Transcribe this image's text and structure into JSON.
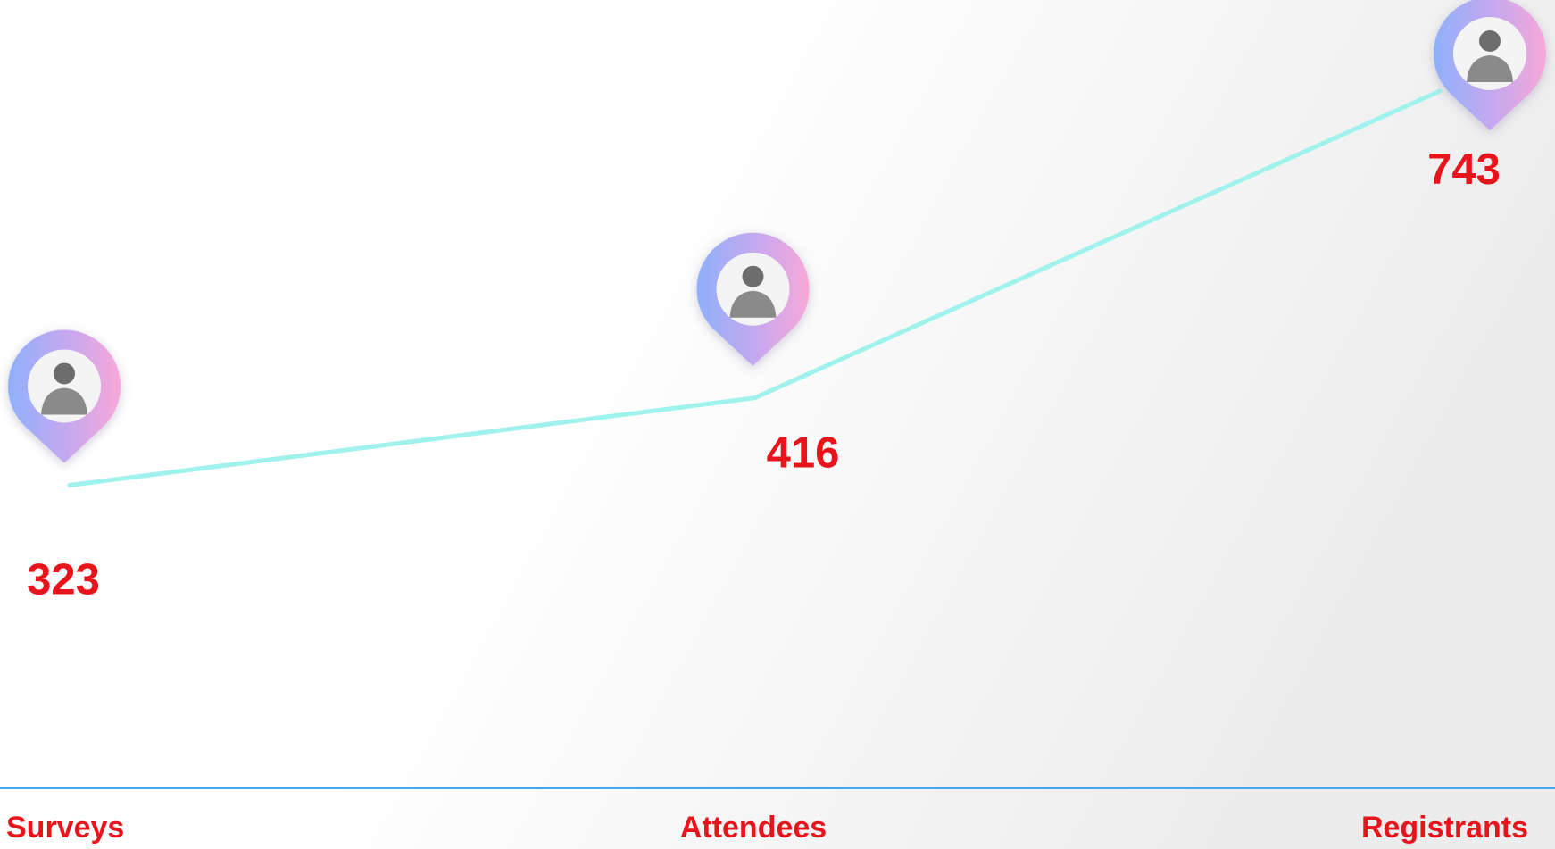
{
  "chart_data": {
    "type": "line",
    "categories": [
      "Surveys",
      "Attendees",
      "Registrants"
    ],
    "values": [
      323,
      416,
      743
    ],
    "color": "#a0f2ec",
    "ylim": [
      0,
      840
    ]
  }
}
